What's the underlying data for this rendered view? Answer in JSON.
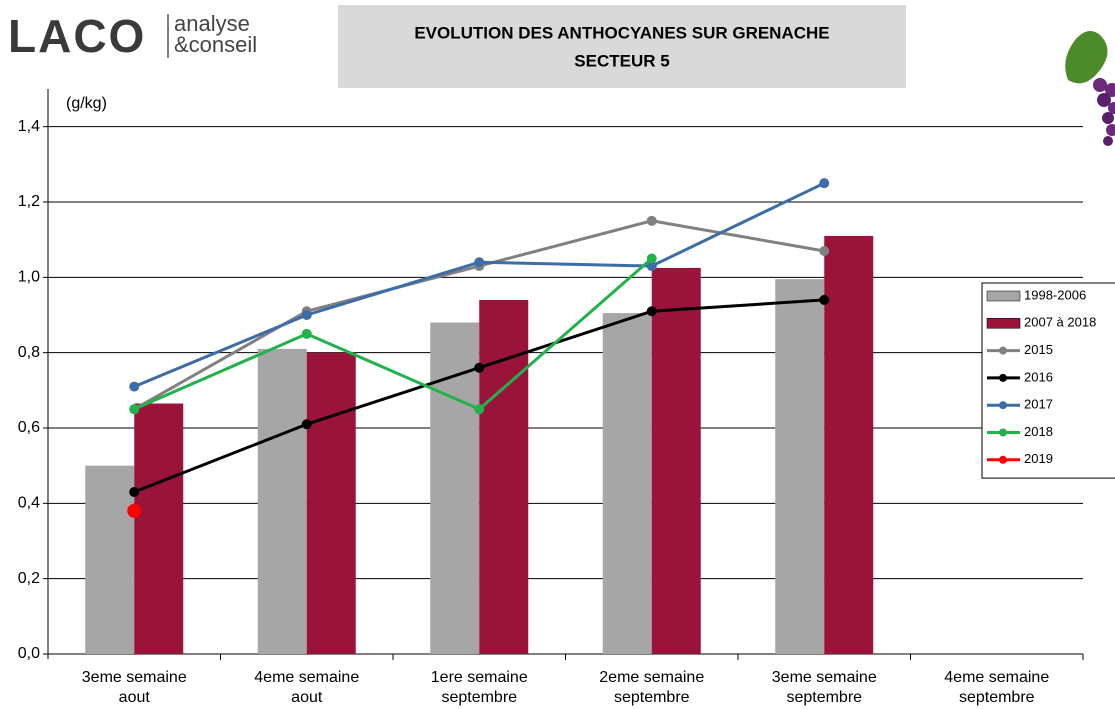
{
  "logo": {
    "brand": "LACO",
    "tagline": [
      "analyse",
      "&conseil"
    ]
  },
  "chart_data": {
    "type": "bar",
    "title": [
      "EVOLUTION DES ANTHOCYANES SUR GRENACHE",
      "SECTEUR 5"
    ],
    "y_label": "(g/kg)",
    "categories": [
      [
        "3eme semaine",
        "aout"
      ],
      [
        "4eme semaine",
        "aout"
      ],
      [
        "1ere semaine",
        "septembre"
      ],
      [
        "2eme semaine",
        "septembre"
      ],
      [
        "3eme semaine",
        "septembre"
      ],
      [
        "4eme semaine",
        "septembre"
      ]
    ],
    "series": [
      {
        "name": "1998-2006",
        "type": "bar",
        "color": "#a6a6a6",
        "values": [
          0.5,
          0.81,
          0.88,
          0.905,
          0.995,
          null
        ]
      },
      {
        "name": "2007 à 2018",
        "type": "bar",
        "color": "#99133a",
        "values": [
          0.665,
          0.8,
          0.94,
          1.025,
          1.11,
          null
        ]
      },
      {
        "name": "2015",
        "type": "line",
        "color": "#808080",
        "values": [
          0.65,
          0.91,
          1.03,
          1.15,
          1.07,
          null
        ]
      },
      {
        "name": "2016",
        "type": "line",
        "color": "#000000",
        "values": [
          0.43,
          0.61,
          0.76,
          0.91,
          0.94,
          null
        ]
      },
      {
        "name": "2017",
        "type": "line",
        "color": "#3d6da6",
        "values": [
          0.71,
          0.9,
          1.04,
          1.03,
          1.25,
          null
        ]
      },
      {
        "name": "2018",
        "type": "line",
        "color": "#22b24c",
        "values": [
          0.65,
          0.85,
          0.65,
          1.05,
          null,
          null
        ]
      },
      {
        "name": "2019",
        "type": "line",
        "color": "#ff0000",
        "values": [
          0.38,
          null,
          null,
          null,
          null,
          null
        ]
      }
    ],
    "ylim": [
      0,
      1.5
    ],
    "yticks": [
      {
        "value": 0,
        "label": "0,0"
      },
      {
        "value": 0.2,
        "label": "0,2"
      },
      {
        "value": 0.4,
        "label": "0,4"
      },
      {
        "value": 0.6,
        "label": "0,6"
      },
      {
        "value": 0.8,
        "label": "0,8"
      },
      {
        "value": 1.0,
        "label": "1,0"
      },
      {
        "value": 1.2,
        "label": "1,2"
      },
      {
        "value": 1.4,
        "label": "1,4"
      }
    ],
    "grid": true,
    "legend": "right"
  }
}
